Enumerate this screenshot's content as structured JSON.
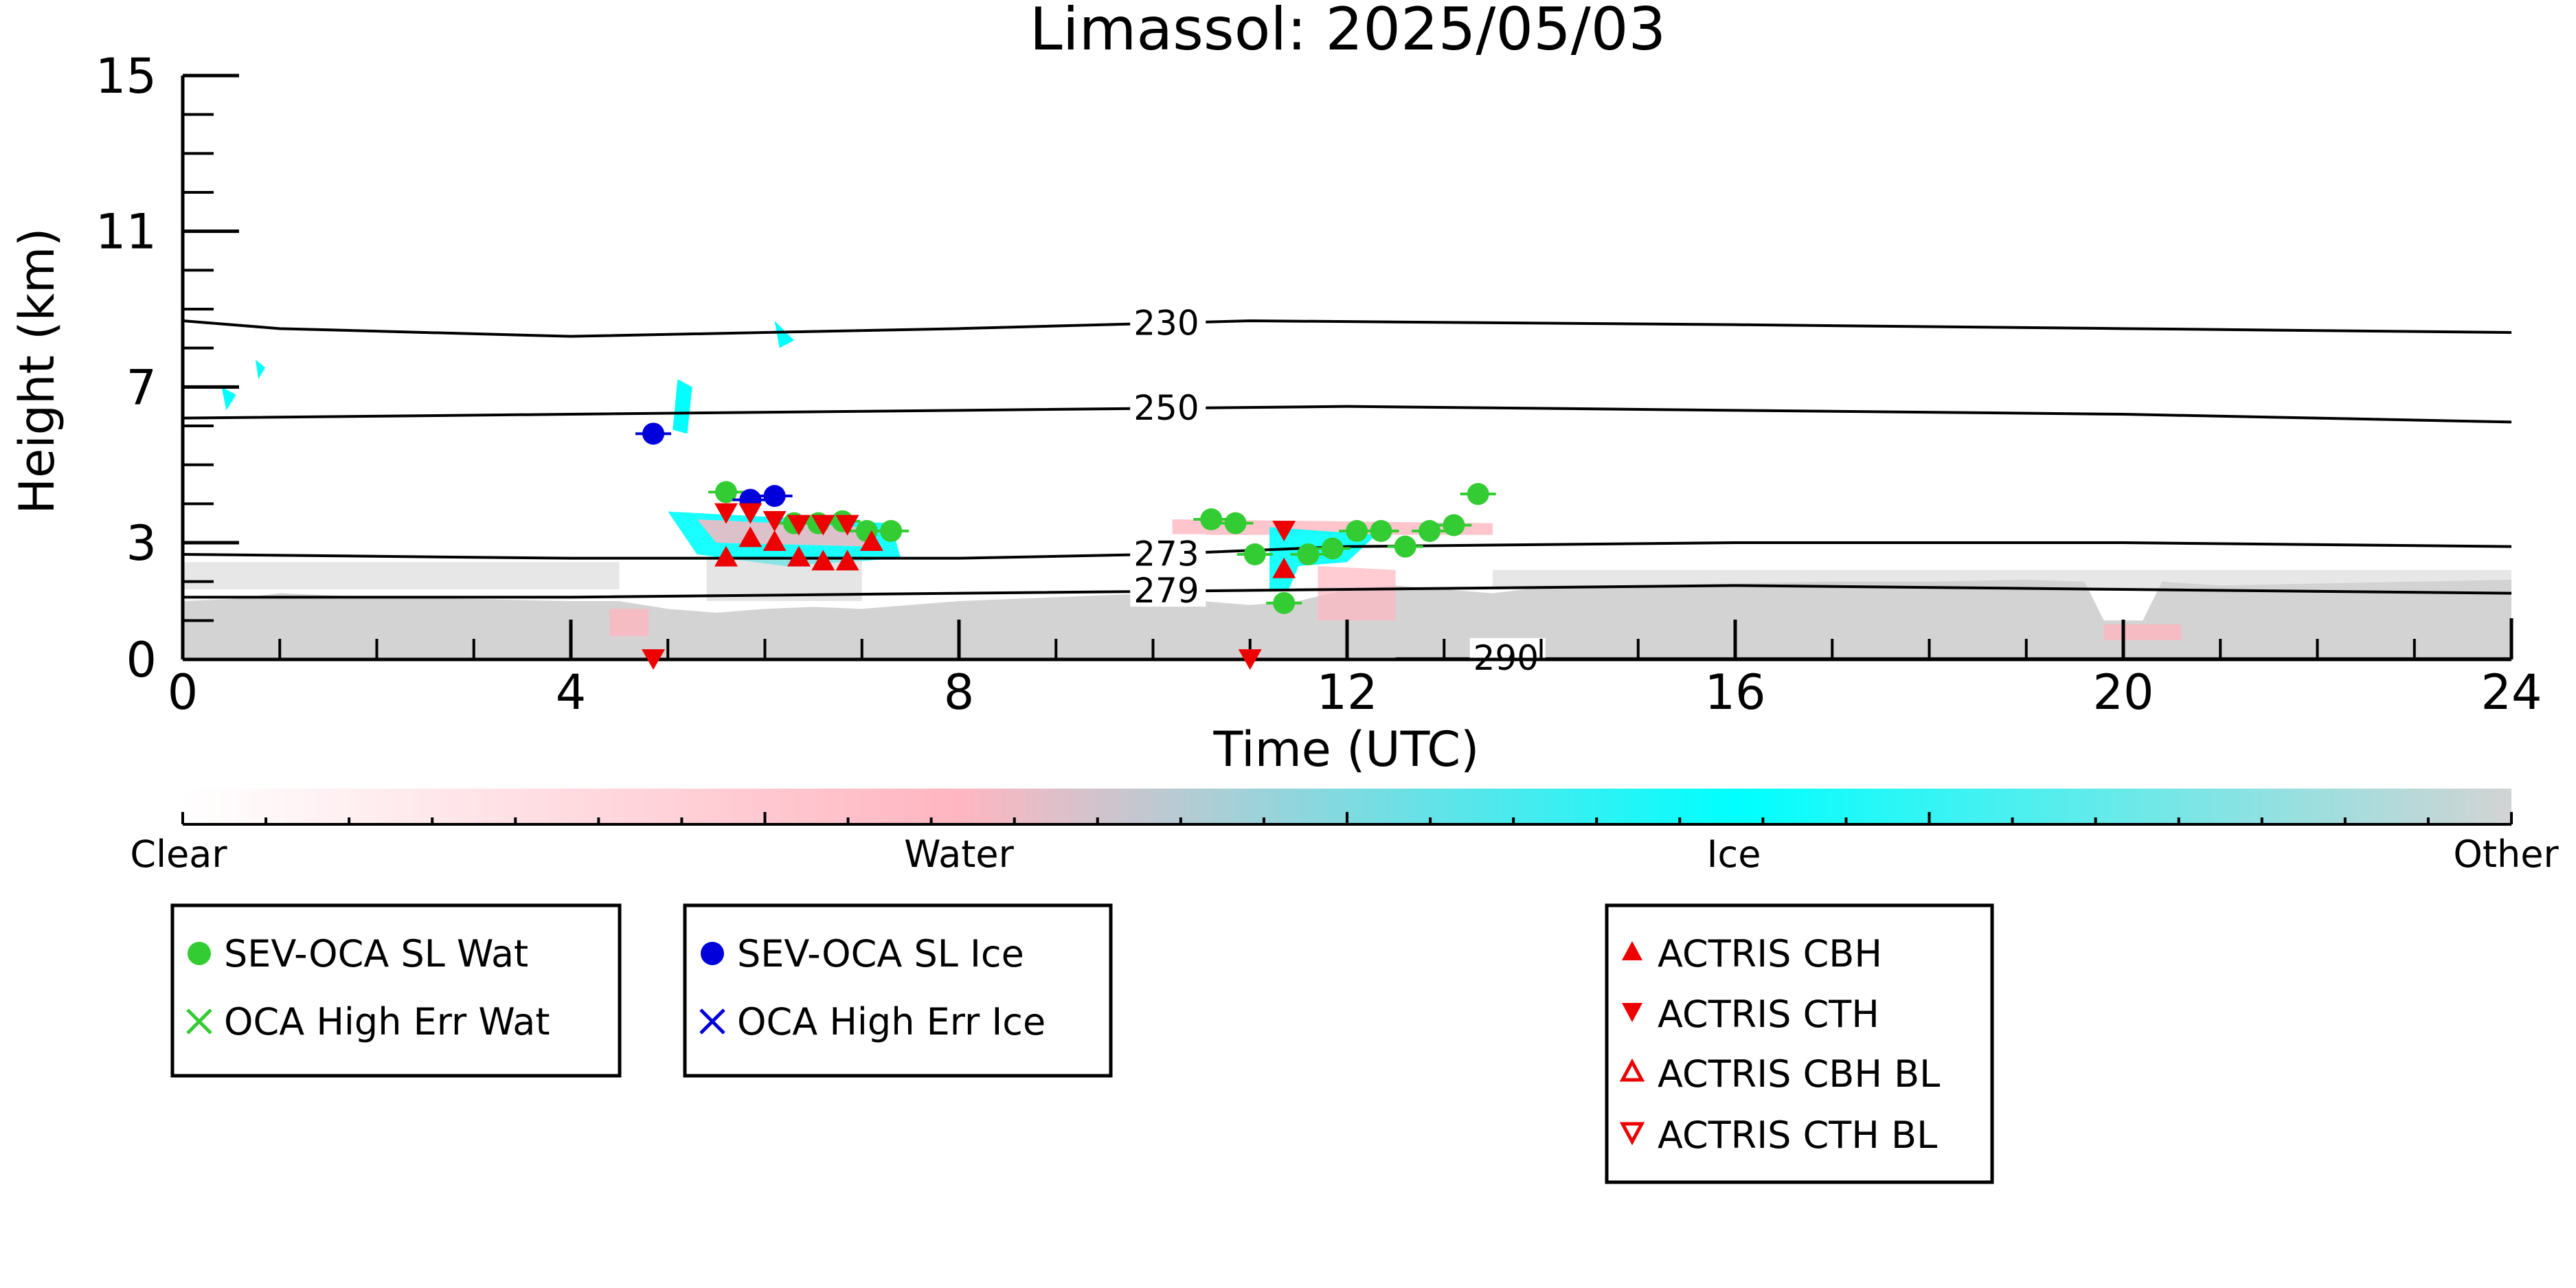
{
  "chart_data": {
    "type": "scatter",
    "title": "Limassol: 2025/05/03",
    "xlabel": "Time (UTC)",
    "ylabel": "Height (km)",
    "xlim": [
      0,
      24
    ],
    "ylim": [
      0,
      15
    ],
    "x_ticks": [
      0,
      4,
      8,
      12,
      16,
      20,
      24
    ],
    "y_ticks": [
      0,
      3,
      7,
      11,
      15
    ],
    "x_tick_labels": [
      "0",
      "4",
      "8",
      "12",
      "16",
      "20",
      "24"
    ],
    "y_tick_labels": [
      "0",
      "3",
      "7",
      "11",
      "15"
    ],
    "colorbar": {
      "labels": [
        "Clear",
        "Water",
        "Ice",
        "Other"
      ],
      "colors": [
        "#ffffff",
        "#ffb6c1",
        "#00ffff",
        "#d3d3d3"
      ]
    },
    "contours": [
      {
        "label": "230",
        "label_x": 9.8,
        "points": [
          [
            0,
            8.7
          ],
          [
            1,
            8.5
          ],
          [
            4,
            8.3
          ],
          [
            8,
            8.5
          ],
          [
            11,
            8.7
          ],
          [
            16,
            8.6
          ],
          [
            20,
            8.5
          ],
          [
            24,
            8.4
          ]
        ]
      },
      {
        "label": "250",
        "label_x": 9.8,
        "points": [
          [
            0,
            6.2
          ],
          [
            4,
            6.3
          ],
          [
            8,
            6.4
          ],
          [
            12,
            6.5
          ],
          [
            16,
            6.4
          ],
          [
            20,
            6.3
          ],
          [
            24,
            6.1
          ]
        ]
      },
      {
        "label": "273",
        "label_x": 9.8,
        "points": [
          [
            0,
            2.7
          ],
          [
            4,
            2.6
          ],
          [
            8,
            2.6
          ],
          [
            10,
            2.7
          ],
          [
            12,
            2.9
          ],
          [
            16,
            3.0
          ],
          [
            20,
            3.0
          ],
          [
            24,
            2.9
          ]
        ]
      },
      {
        "label": "279",
        "label_x": 9.8,
        "points": [
          [
            0,
            1.6
          ],
          [
            4,
            1.6
          ],
          [
            8,
            1.7
          ],
          [
            12,
            1.8
          ],
          [
            16,
            1.9
          ],
          [
            20,
            1.8
          ],
          [
            24,
            1.7
          ]
        ]
      },
      {
        "label": "290",
        "label_x": 13.3,
        "points": [
          [
            12.5,
            0.02
          ],
          [
            24,
            0.02
          ]
        ]
      }
    ],
    "series": [
      {
        "name": "SEV-OCA SL Wat",
        "marker": "circle",
        "color": "#33cc33",
        "points": [
          [
            5.6,
            4.3
          ],
          [
            6.3,
            3.5
          ],
          [
            6.55,
            3.5
          ],
          [
            6.8,
            3.55
          ],
          [
            7.05,
            3.3
          ],
          [
            7.3,
            3.3
          ],
          [
            10.6,
            3.6
          ],
          [
            10.85,
            3.5
          ],
          [
            11.05,
            2.7
          ],
          [
            11.35,
            1.45
          ],
          [
            11.6,
            2.7
          ],
          [
            11.85,
            2.85
          ],
          [
            12.1,
            3.3
          ],
          [
            12.35,
            3.3
          ],
          [
            12.6,
            2.9
          ],
          [
            12.85,
            3.3
          ],
          [
            13.1,
            3.45
          ],
          [
            13.35,
            4.25
          ]
        ]
      },
      {
        "name": "OCA High Err Wat",
        "marker": "x",
        "color": "#33cc33",
        "points": []
      },
      {
        "name": "SEV-OCA SL Ice",
        "marker": "circle",
        "color": "#0000dd",
        "points": [
          [
            4.85,
            5.8
          ],
          [
            5.85,
            4.1
          ],
          [
            6.1,
            4.2
          ]
        ]
      },
      {
        "name": "OCA High Err Ice",
        "marker": "x",
        "color": "#0000dd",
        "points": []
      },
      {
        "name": "ACTRIS CBH",
        "marker": "triangle-up",
        "color": "#ee0000",
        "points": [
          [
            5.6,
            2.6
          ],
          [
            5.85,
            3.1
          ],
          [
            6.1,
            3.0
          ],
          [
            6.35,
            2.6
          ],
          [
            6.6,
            2.5
          ],
          [
            6.85,
            2.5
          ],
          [
            7.1,
            3.0
          ],
          [
            11.35,
            2.3
          ]
        ]
      },
      {
        "name": "ACTRIS CTH",
        "marker": "triangle-down",
        "color": "#ee0000",
        "points": [
          [
            4.85,
            0.05
          ],
          [
            5.6,
            3.8
          ],
          [
            5.85,
            3.8
          ],
          [
            6.1,
            3.6
          ],
          [
            6.35,
            3.5
          ],
          [
            6.6,
            3.5
          ],
          [
            6.85,
            3.5
          ],
          [
            11.0,
            0.05
          ],
          [
            11.35,
            3.35
          ]
        ]
      },
      {
        "name": "ACTRIS CBH BL",
        "marker": "triangle-up-open",
        "color": "#ee0000",
        "points": []
      },
      {
        "name": "ACTRIS CTH BL",
        "marker": "triangle-down-open",
        "color": "#ee0000",
        "points": []
      }
    ],
    "legends": [
      {
        "entries": [
          "SEV-OCA SL Wat",
          "OCA High Err Wat"
        ]
      },
      {
        "entries": [
          "SEV-OCA SL Ice",
          "OCA High Err Ice"
        ]
      },
      {
        "entries": [
          "ACTRIS CBH",
          "ACTRIS CTH",
          "ACTRIS CBH BL",
          "ACTRIS CTH BL"
        ]
      }
    ]
  }
}
